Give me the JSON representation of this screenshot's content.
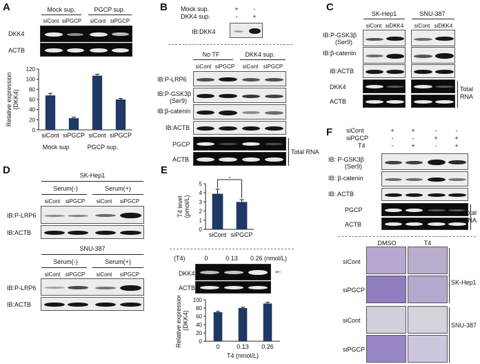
{
  "panels": {
    "A": {
      "letter": "A",
      "groups": [
        "Mock sup.",
        "PGCP sup."
      ],
      "lanes": [
        "siCont",
        "siPGCP",
        "siCont",
        "siPGCP"
      ],
      "blots": [
        "DKK4",
        "ACTB"
      ],
      "bottom_groups": [
        "Mock sup",
        "PGCP sup."
      ]
    },
    "B": {
      "letter": "B",
      "top_rows": [
        "Mock sup.",
        "DKK4 sup."
      ],
      "top_signs": [
        [
          "+",
          "-"
        ],
        [
          "-",
          "+"
        ]
      ],
      "top_blot": "IB:DKK4",
      "groups": [
        "No TF",
        "DKK4 sup."
      ],
      "lanes": [
        "siCont",
        "siPGCP",
        "siCont",
        "siPGCP"
      ],
      "blots": [
        "IB:P-LRP6",
        "IB:P-GSK3β",
        "(Ser9)",
        "IB:β-catenin",
        "IB:ACTB",
        "PGCP",
        "ACTB"
      ],
      "total_rna": "Total RNA"
    },
    "C": {
      "letter": "C",
      "groups": [
        "SK-Hep1",
        "SNU-387"
      ],
      "lanes": [
        "siCont",
        "siDKK4",
        "siCont",
        "siDKK4"
      ],
      "blots": [
        "IB:P-GSK3β",
        "(Ser9)",
        "IB:β-catenin",
        "IB:ACTB",
        "DKK4",
        "ACTB"
      ],
      "total_rna": [
        "Total",
        "RNA"
      ]
    },
    "D": {
      "letter": "D",
      "cells": [
        "SK-Hep1",
        "SNU-387"
      ],
      "groups": [
        "Serum(-)",
        "Serum(+)"
      ],
      "lanes": [
        "siCont",
        "siPGCP",
        "siCont",
        "siPGCP"
      ],
      "blots": [
        "IB:P-LRP6",
        "IB:ACTB"
      ]
    },
    "E": {
      "letter": "E",
      "t4_label": "(T4)",
      "t4_values": [
        "0",
        "0.13",
        "0.26 (nmol/L)"
      ],
      "blots": [
        "DKK4",
        "ACTB"
      ],
      "arrow": "←"
    },
    "F": {
      "letter": "F",
      "rows": [
        "siCont",
        "siPGCP",
        "T4"
      ],
      "signs": [
        [
          "+",
          "+",
          "-",
          "-"
        ],
        [
          "-",
          "-",
          "+",
          "+"
        ],
        [
          "-",
          "+",
          "-",
          "+"
        ]
      ],
      "blots": [
        "IB: P-GSK3β",
        "(Ser9)",
        "IB: β-catenin",
        "IB: ACTB",
        "PGCP",
        "ACTB"
      ],
      "total_rna": [
        "Total",
        "RNA"
      ],
      "micro_cols": [
        "DMSO",
        "T4"
      ],
      "micro_rows": [
        "siCont",
        "siPGCP",
        "siCont",
        "siPGCP"
      ],
      "micro_cells": [
        "SK-Hep1",
        "SNU-387"
      ]
    }
  },
  "chart_data": [
    {
      "type": "bar",
      "panel": "A",
      "categories": [
        "siCont",
        "siPGCP",
        "siCont",
        "siPGCP"
      ],
      "groups": [
        "Mock sup",
        "PGCP sup."
      ],
      "values": [
        68,
        23,
        107,
        60
      ],
      "errors": [
        4,
        2,
        3,
        2
      ],
      "title": "",
      "xlabel": "",
      "ylabel": "Relative expression (DKK4)",
      "ylim": [
        0,
        120
      ],
      "yticks": [
        0,
        20,
        40,
        60,
        80,
        100,
        120
      ],
      "color": "#1f3864"
    },
    {
      "type": "bar",
      "panel": "E-top",
      "categories": [
        "siCont",
        "siPGCP"
      ],
      "values": [
        3.9,
        3.0
      ],
      "errors": [
        0.5,
        0.25
      ],
      "title": "",
      "xlabel": "",
      "ylabel": "T4 level (pmol/L)",
      "ylim": [
        0,
        5
      ],
      "yticks": [
        0,
        1,
        2,
        3,
        4,
        5
      ],
      "significance": "*",
      "color": "#1f3864"
    },
    {
      "type": "bar",
      "panel": "E-bottom",
      "categories": [
        "0",
        "0.13",
        "0.26"
      ],
      "values": [
        70,
        80,
        91
      ],
      "errors": [
        2,
        2,
        3
      ],
      "title": "",
      "xlabel": "T4 (nmol/L)",
      "ylabel": "Relative expression (DKK4)",
      "ylim": [
        0,
        100
      ],
      "yticks": [
        0,
        20,
        40,
        60,
        80,
        100
      ],
      "color": "#1f3864"
    }
  ]
}
